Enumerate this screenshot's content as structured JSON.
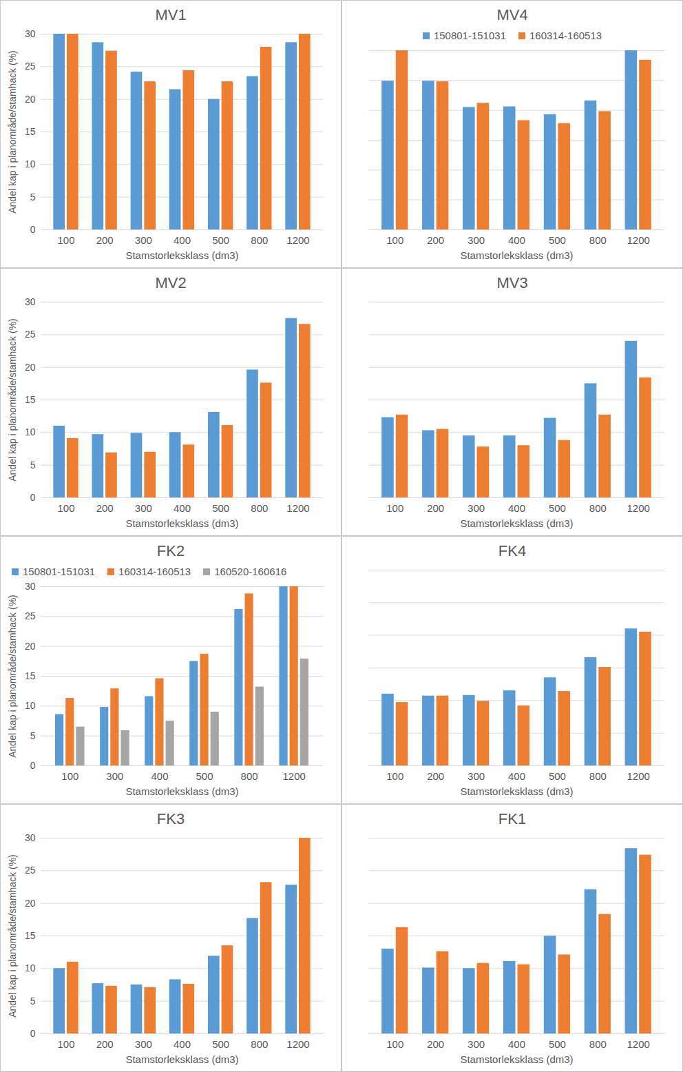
{
  "chart_data": [
    {
      "type": "bar",
      "title": "MV1",
      "categories": [
        "100",
        "200",
        "300",
        "400",
        "500",
        "800",
        "1200"
      ],
      "series": [
        {
          "color": "#5b9bd5",
          "values": [
            30,
            28.7,
            24.2,
            21.5,
            20,
            23.5,
            28.7
          ]
        },
        {
          "color": "#ed7d31",
          "values": [
            30,
            27.4,
            22.7,
            24.4,
            22.7,
            28,
            30
          ]
        }
      ],
      "xlabel": "Stamstorleksklass (dm3)",
      "ylabel": "Andel kap i planområde/stamhack (%)",
      "ylim": [
        0,
        30
      ],
      "yticks": [
        0,
        5,
        10,
        15,
        20,
        25,
        30
      ],
      "grid": true
    },
    {
      "type": "bar",
      "title": "MV4",
      "categories": [
        "100",
        "200",
        "300",
        "400",
        "500",
        "800",
        "1200"
      ],
      "series": [
        {
          "name": "150801-151031",
          "color": "#5b9bd5",
          "values": [
            24.9,
            24.9,
            20.5,
            20.6,
            19.3,
            21.6,
            30
          ]
        },
        {
          "name": "160314-160513",
          "color": "#ed7d31",
          "values": [
            30,
            24.8,
            21.2,
            18.3,
            17.8,
            19.8,
            28.4
          ]
        }
      ],
      "xlabel": "Stamstorleksklass (dm3)",
      "ylim": [
        0,
        30
      ],
      "yticks": [
        0,
        5,
        10,
        15,
        20,
        25,
        30
      ],
      "grid": true,
      "tick_labels": "x",
      "legend": "top"
    },
    {
      "type": "bar",
      "title": "MV2",
      "categories": [
        "100",
        "200",
        "300",
        "400",
        "500",
        "800",
        "1200"
      ],
      "series": [
        {
          "color": "#5b9bd5",
          "values": [
            11,
            9.7,
            9.9,
            10,
            13.1,
            19.6,
            27.5
          ]
        },
        {
          "color": "#ed7d31",
          "values": [
            9.1,
            6.9,
            7,
            8.1,
            11.1,
            17.6,
            26.6
          ]
        }
      ],
      "xlabel": "Stamstorleksklass (dm3)",
      "ylabel": "Andel kap i planområde/stamhack (%)",
      "ylim": [
        0,
        30
      ],
      "yticks": [
        0,
        5,
        10,
        15,
        20,
        25,
        30
      ],
      "grid": true
    },
    {
      "type": "bar",
      "title": "MV3",
      "categories": [
        "100",
        "200",
        "300",
        "400",
        "500",
        "800",
        "1200"
      ],
      "series": [
        {
          "color": "#5b9bd5",
          "values": [
            12.3,
            10.3,
            9.5,
            9.5,
            12.2,
            17.5,
            24
          ]
        },
        {
          "color": "#ed7d31",
          "values": [
            12.7,
            10.5,
            7.8,
            8,
            8.8,
            12.7,
            18.4
          ]
        }
      ],
      "xlabel": "Stamstorleksklass (dm3)",
      "ylim": [
        0,
        30
      ],
      "yticks": [
        0,
        5,
        10,
        15,
        20,
        25,
        30
      ],
      "grid": true,
      "tick_labels": "x"
    },
    {
      "type": "bar",
      "title": "FK2",
      "categories": [
        "100",
        "300",
        "400",
        "500",
        "800",
        "1200"
      ],
      "series": [
        {
          "name": "150801-151031",
          "color": "#5b9bd5",
          "values": [
            8.6,
            9.8,
            11.6,
            17.5,
            26.2,
            30
          ]
        },
        {
          "name": "160314-160513",
          "color": "#ed7d31",
          "values": [
            11.3,
            12.9,
            14.6,
            18.7,
            28.8,
            30
          ]
        },
        {
          "name": "160520-160616",
          "color": "#a5a5a5",
          "values": [
            6.5,
            5.9,
            7.5,
            9,
            13.2,
            17.9
          ]
        }
      ],
      "xlabel": "Stamstorleksklass (dm3)",
      "ylabel": "Andel kap i planområde/stamhack (%)",
      "ylim": [
        0,
        30
      ],
      "yticks": [
        0,
        5,
        10,
        15,
        20,
        25,
        30
      ],
      "grid": true,
      "legend": "top-left"
    },
    {
      "type": "bar",
      "title": "FK4",
      "categories": [
        "100",
        "200",
        "300",
        "400",
        "500",
        "800",
        "1200"
      ],
      "series": [
        {
          "color": "#5b9bd5",
          "values": [
            11,
            10.7,
            10.8,
            11.5,
            13.5,
            16.6,
            21
          ]
        },
        {
          "color": "#ed7d31",
          "values": [
            9.7,
            10.7,
            9.9,
            9.2,
            11.4,
            15.1,
            20.5
          ]
        }
      ],
      "xlabel": "Stamstorleksklass (dm3)",
      "ylim": [
        0,
        30
      ],
      "yticks": [
        0,
        5,
        10,
        15,
        20,
        25,
        30
      ],
      "grid": true,
      "tick_labels": "x"
    },
    {
      "type": "bar",
      "title": "FK3",
      "categories": [
        "100",
        "200",
        "300",
        "400",
        "500",
        "800",
        "1200"
      ],
      "series": [
        {
          "color": "#5b9bd5",
          "values": [
            10,
            7.7,
            7.5,
            8.3,
            11.9,
            17.7,
            22.8
          ]
        },
        {
          "color": "#ed7d31",
          "values": [
            11,
            7.3,
            7.1,
            7.6,
            13.5,
            23.2,
            30
          ]
        }
      ],
      "xlabel": "Stamstorleksklass (dm3)",
      "ylabel": "Andel kap i planområde/stamhack (%)",
      "ylim": [
        0,
        30
      ],
      "yticks": [
        0,
        5,
        10,
        15,
        20,
        25,
        30
      ],
      "grid": true
    },
    {
      "type": "bar",
      "title": "FK1",
      "categories": [
        "100",
        "200",
        "300",
        "400",
        "500",
        "800",
        "1200"
      ],
      "series": [
        {
          "color": "#5b9bd5",
          "values": [
            13,
            10.1,
            10,
            11.1,
            15,
            22.1,
            28.4
          ]
        },
        {
          "color": "#ed7d31",
          "values": [
            16.3,
            12.6,
            10.8,
            10.6,
            12.1,
            18.3,
            27.4
          ]
        }
      ],
      "xlabel": "Stamstorleksklass (dm3)",
      "ylim": [
        0,
        30
      ],
      "yticks": [
        0,
        5,
        10,
        15,
        20,
        25,
        30
      ],
      "grid": true,
      "tick_labels": "x"
    }
  ]
}
